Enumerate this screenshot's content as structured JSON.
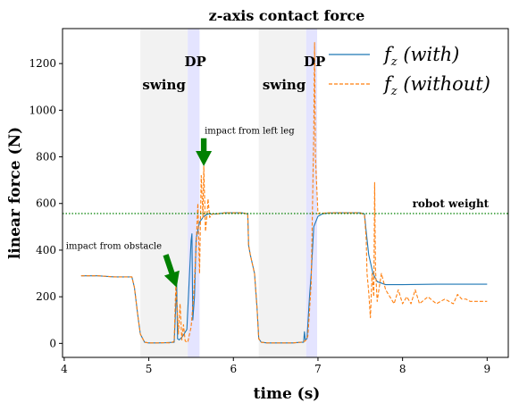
{
  "chart_data": {
    "type": "line",
    "title": "z-axis contact force",
    "xlabel": "time (s)",
    "ylabel": "linear force (N)",
    "xlim": [
      3.98,
      9.25
    ],
    "ylim": [
      -60,
      1350
    ],
    "xticks": [
      4,
      5,
      6,
      7,
      8,
      9
    ],
    "yticks": [
      0,
      200,
      400,
      600,
      800,
      1000,
      1200
    ],
    "grid": false,
    "legend_position": "top-right",
    "colors": {
      "with": "#1f77b4",
      "without": "#ff7f0e",
      "swing": "#f2f2f2",
      "dp": "#e4e4ff",
      "weight": "#008000",
      "arrow": "#008000"
    },
    "regions": [
      {
        "label": "swing",
        "type": "swing",
        "x0": 4.9,
        "x1": 5.46
      },
      {
        "label": "DP",
        "type": "dp",
        "x0": 5.46,
        "x1": 5.6
      },
      {
        "label": "swing",
        "type": "swing",
        "x0": 6.3,
        "x1": 6.86
      },
      {
        "label": "DP",
        "type": "dp",
        "x0": 6.86,
        "x1": 6.99
      }
    ],
    "reference_line": {
      "y": 557,
      "label": "robot weight"
    },
    "annotations": [
      {
        "text": "impact from obstacle",
        "text_x": 4.02,
        "text_y": 405,
        "arrow_from": [
          5.2,
          380
        ],
        "arrow_to": [
          5.33,
          240
        ]
      },
      {
        "text": "impact from left leg",
        "text_x": 5.66,
        "text_y": 900,
        "arrow_from": [
          5.65,
          880
        ],
        "arrow_to": [
          5.65,
          760
        ]
      }
    ],
    "series": [
      {
        "name": "f_z (with)",
        "style": "solid",
        "x": [
          4.2,
          4.4,
          4.6,
          4.8,
          4.83,
          4.87,
          4.9,
          4.95,
          5.0,
          5.1,
          5.2,
          5.3,
          5.33,
          5.34,
          5.36,
          5.4,
          5.45,
          5.5,
          5.51,
          5.52,
          5.54,
          5.56,
          5.6,
          5.65,
          5.7,
          5.75,
          5.8,
          5.9,
          6.0,
          6.1,
          6.17,
          6.18,
          6.2,
          6.25,
          6.28,
          6.3,
          6.33,
          6.4,
          6.5,
          6.6,
          6.7,
          6.8,
          6.83,
          6.84,
          6.85,
          6.87,
          6.9,
          6.92,
          6.95,
          7.0,
          7.05,
          7.1,
          7.2,
          7.3,
          7.4,
          7.5,
          7.55,
          7.57,
          7.6,
          7.65,
          7.7,
          7.8,
          8.0,
          8.2,
          8.4,
          8.6,
          8.8,
          9.0
        ],
        "y": [
          290,
          290,
          285,
          285,
          240,
          120,
          40,
          5,
          2,
          2,
          3,
          5,
          250,
          20,
          15,
          30,
          60,
          440,
          470,
          100,
          200,
          450,
          520,
          545,
          555,
          555,
          555,
          560,
          560,
          560,
          555,
          420,
          380,
          300,
          150,
          20,
          5,
          2,
          2,
          2,
          2,
          5,
          5,
          50,
          15,
          20,
          200,
          300,
          500,
          545,
          555,
          558,
          560,
          560,
          560,
          560,
          555,
          480,
          380,
          300,
          265,
          252,
          252,
          253,
          254,
          254,
          254,
          254
        ]
      },
      {
        "name": "f_z (without)",
        "style": "dashed",
        "x": [
          4.2,
          4.4,
          4.6,
          4.8,
          4.83,
          4.87,
          4.9,
          4.95,
          5.0,
          5.1,
          5.2,
          5.25,
          5.28,
          5.3,
          5.32,
          5.35,
          5.37,
          5.39,
          5.41,
          5.43,
          5.46,
          5.5,
          5.53,
          5.56,
          5.58,
          5.6,
          5.62,
          5.64,
          5.65,
          5.67,
          5.69,
          5.7,
          5.72,
          5.75,
          5.8,
          5.9,
          6.0,
          6.1,
          6.17,
          6.18,
          6.2,
          6.25,
          6.28,
          6.3,
          6.33,
          6.4,
          6.5,
          6.6,
          6.7,
          6.8,
          6.85,
          6.88,
          6.9,
          6.92,
          6.95,
          6.96,
          6.97,
          7.0,
          7.02,
          7.05,
          7.1,
          7.2,
          7.3,
          7.4,
          7.5,
          7.55,
          7.57,
          7.58,
          7.6,
          7.62,
          7.64,
          7.66,
          7.67,
          7.68,
          7.7,
          7.72,
          7.75,
          7.8,
          7.85,
          7.9,
          7.95,
          8.0,
          8.05,
          8.1,
          8.15,
          8.2,
          8.3,
          8.4,
          8.5,
          8.6,
          8.65,
          8.7,
          8.75,
          8.8,
          9.0
        ],
        "y": [
          290,
          290,
          285,
          285,
          240,
          120,
          40,
          5,
          2,
          2,
          3,
          2,
          5,
          10,
          260,
          40,
          170,
          15,
          80,
          10,
          5,
          70,
          200,
          420,
          600,
          300,
          720,
          540,
          760,
          480,
          560,
          620,
          540,
          555,
          555,
          560,
          560,
          560,
          555,
          420,
          380,
          300,
          150,
          20,
          5,
          2,
          2,
          2,
          2,
          5,
          10,
          30,
          140,
          260,
          900,
          1290,
          800,
          555,
          560,
          558,
          560,
          560,
          560,
          560,
          560,
          550,
          450,
          300,
          220,
          110,
          300,
          200,
          690,
          320,
          180,
          230,
          300,
          230,
          200,
          170,
          230,
          170,
          200,
          170,
          230,
          170,
          200,
          170,
          190,
          170,
          210,
          190,
          190,
          180,
          180
        ]
      }
    ]
  }
}
